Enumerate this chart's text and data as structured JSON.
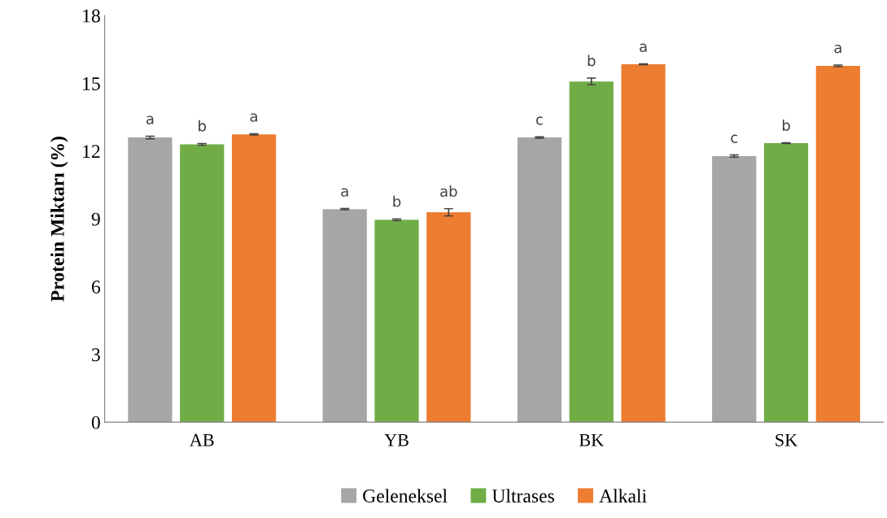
{
  "chart_data": {
    "type": "bar",
    "ylabel": "Protein Miktarı (%)",
    "categories": [
      "AB",
      "YB",
      "BK",
      "SK"
    ],
    "series": [
      {
        "name": "Geleneksel",
        "color": "#a6a6a6",
        "values": [
          12.6,
          9.43,
          12.6,
          11.78
        ],
        "errors": [
          0.06,
          0.03,
          0.03,
          0.05
        ],
        "value_labels": [
          "a",
          "a",
          "c",
          "c"
        ]
      },
      {
        "name": "Ultrases",
        "color": "#70ad47",
        "values": [
          12.3,
          8.96,
          15.08,
          12.35
        ],
        "errors": [
          0.04,
          0.04,
          0.15,
          0.02
        ],
        "value_labels": [
          "b",
          "b",
          "b",
          "b"
        ]
      },
      {
        "name": "Alkali",
        "color": "#ed7d31",
        "values": [
          12.74,
          9.29,
          15.84,
          15.77
        ],
        "errors": [
          0.03,
          0.16,
          0.02,
          0.04
        ],
        "value_labels": [
          "a",
          "ab",
          "a",
          "a"
        ]
      }
    ],
    "ylim": [
      0,
      18
    ],
    "yticks": [
      0,
      3,
      6,
      9,
      12,
      15,
      18
    ],
    "grid": false,
    "legend": "bottom"
  }
}
